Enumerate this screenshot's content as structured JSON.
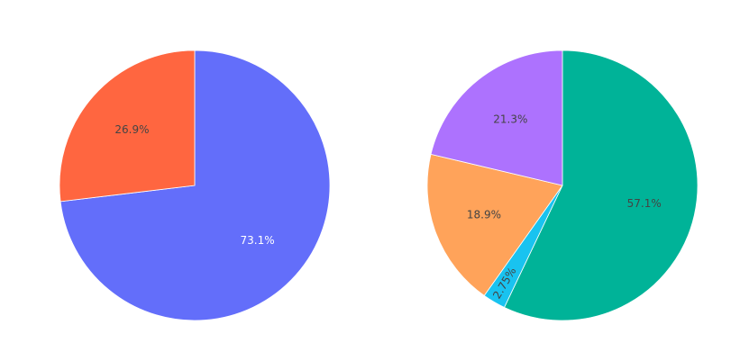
{
  "chart_data": [
    {
      "type": "pie",
      "labels": [
        "73.1%",
        "26.9%"
      ],
      "values": [
        73.1,
        26.9
      ],
      "colors": [
        "#636efa",
        "#ff6640"
      ],
      "label_colors": [
        "#ffffff",
        "#444444"
      ],
      "direction": "clockwise",
      "start": "top"
    },
    {
      "type": "pie",
      "labels": [
        "57.1%",
        "2.75%",
        "18.9%",
        "21.3%"
      ],
      "values": [
        57.1,
        2.75,
        18.9,
        21.3
      ],
      "colors": [
        "#00b398",
        "#19c3f0",
        "#ffa35a",
        "#ad72fe"
      ],
      "label_colors": [
        "#444444",
        "#444444",
        "#444444",
        "#444444"
      ],
      "direction": "clockwise",
      "start": "top"
    }
  ]
}
